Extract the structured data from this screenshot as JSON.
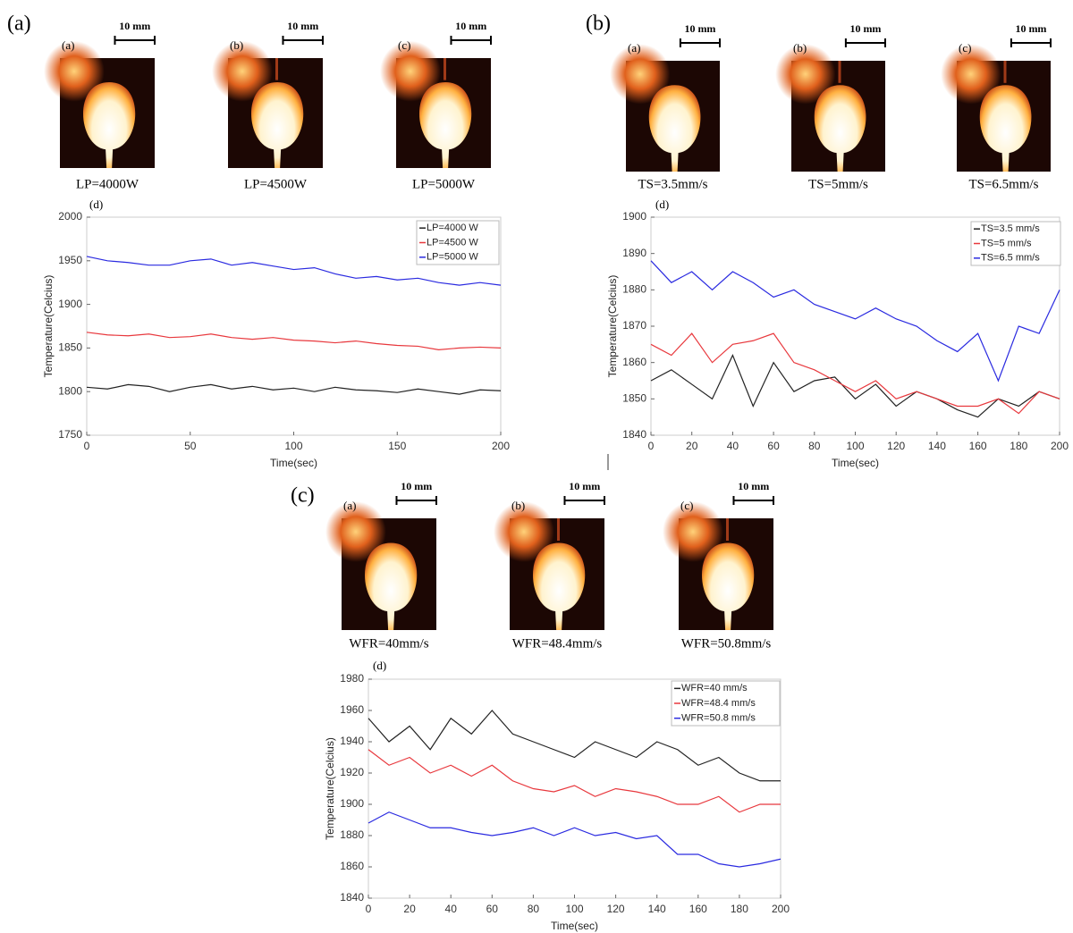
{
  "chart_data": [
    {
      "type": "line",
      "panel_label": "(a)",
      "subplot_label": "(d)",
      "images": [
        {
          "label": "(a)",
          "scale": "10 mm",
          "caption": "LP=4000W"
        },
        {
          "label": "(b)",
          "scale": "10 mm",
          "caption": "LP=4500W"
        },
        {
          "label": "(c)",
          "scale": "10 mm",
          "caption": "LP=5000W"
        }
      ],
      "x_label": "Time(sec)",
      "y_label": "Temperature(Celcius)",
      "x": [
        0,
        10,
        20,
        30,
        40,
        50,
        60,
        70,
        80,
        90,
        100,
        110,
        120,
        130,
        140,
        150,
        160,
        170,
        180,
        190,
        200
      ],
      "xlim": [
        0,
        200
      ],
      "xticks": [
        0,
        50,
        100,
        150,
        200
      ],
      "ylim": [
        1750,
        2000
      ],
      "yticks": [
        1750,
        1800,
        1850,
        1900,
        1950,
        2000
      ],
      "legend": "upper right",
      "series": [
        {
          "name": "LP=4000 W",
          "color": "#222222",
          "values": [
            1805,
            1803,
            1808,
            1806,
            1800,
            1805,
            1808,
            1803,
            1806,
            1802,
            1804,
            1800,
            1805,
            1802,
            1801,
            1799,
            1803,
            1800,
            1797,
            1802,
            1801
          ]
        },
        {
          "name": "LP=4500 W",
          "color": "#e8383d",
          "values": [
            1868,
            1865,
            1864,
            1866,
            1862,
            1863,
            1866,
            1862,
            1860,
            1862,
            1859,
            1858,
            1856,
            1858,
            1855,
            1853,
            1852,
            1848,
            1850,
            1851,
            1850
          ]
        },
        {
          "name": "LP=5000 W",
          "color": "#2a2ae0",
          "values": [
            1955,
            1950,
            1948,
            1945,
            1945,
            1950,
            1952,
            1945,
            1948,
            1944,
            1940,
            1942,
            1935,
            1930,
            1932,
            1928,
            1930,
            1925,
            1922,
            1925,
            1922
          ]
        }
      ]
    },
    {
      "type": "line",
      "panel_label": "(b)",
      "subplot_label": "(d)",
      "images": [
        {
          "label": "(a)",
          "scale": "10 mm",
          "caption": "TS=3.5mm/s"
        },
        {
          "label": "(b)",
          "scale": "10 mm",
          "caption": "TS=5mm/s"
        },
        {
          "label": "(c)",
          "scale": "10 mm",
          "caption": "TS=6.5mm/s"
        }
      ],
      "x_label": "Time(sec)",
      "y_label": "Temperature(Celcius)",
      "x": [
        0,
        10,
        20,
        30,
        40,
        50,
        60,
        70,
        80,
        90,
        100,
        110,
        120,
        130,
        140,
        150,
        160,
        170,
        180,
        190,
        200
      ],
      "xlim": [
        0,
        200
      ],
      "xticks": [
        0,
        20,
        40,
        60,
        80,
        100,
        120,
        140,
        160,
        180,
        200
      ],
      "ylim": [
        1840,
        1900
      ],
      "yticks": [
        1840,
        1850,
        1860,
        1870,
        1880,
        1890,
        1900
      ],
      "legend": "upper right",
      "series": [
        {
          "name": "TS=3.5 mm/s",
          "color": "#222222",
          "values": [
            1855,
            1858,
            1854,
            1850,
            1862,
            1848,
            1860,
            1852,
            1855,
            1856,
            1850,
            1854,
            1848,
            1852,
            1850,
            1847,
            1845,
            1850,
            1848,
            1852,
            1850
          ]
        },
        {
          "name": "TS=5 mm/s",
          "color": "#e8383d",
          "values": [
            1865,
            1862,
            1868,
            1860,
            1865,
            1866,
            1868,
            1860,
            1858,
            1855,
            1852,
            1855,
            1850,
            1852,
            1850,
            1848,
            1848,
            1850,
            1846,
            1852,
            1850
          ]
        },
        {
          "name": "TS=6.5 mm/s",
          "color": "#2a2ae0",
          "values": [
            1888,
            1882,
            1885,
            1880,
            1885,
            1882,
            1878,
            1880,
            1876,
            1874,
            1872,
            1875,
            1872,
            1870,
            1866,
            1863,
            1868,
            1855,
            1870,
            1868,
            1880
          ]
        }
      ]
    },
    {
      "type": "line",
      "panel_label": "(c)",
      "subplot_label": "(d)",
      "images": [
        {
          "label": "(a)",
          "scale": "10 mm",
          "caption": "WFR=40mm/s"
        },
        {
          "label": "(b)",
          "scale": "10 mm",
          "caption": "WFR=48.4mm/s"
        },
        {
          "label": "(c)",
          "scale": "10 mm",
          "caption": "WFR=50.8mm/s"
        }
      ],
      "x_label": "Time(sec)",
      "y_label": "Temperature(Celcius)",
      "x": [
        0,
        10,
        20,
        30,
        40,
        50,
        60,
        70,
        80,
        90,
        100,
        110,
        120,
        130,
        140,
        150,
        160,
        170,
        180,
        190,
        200
      ],
      "xlim": [
        0,
        200
      ],
      "xticks": [
        0,
        20,
        40,
        60,
        80,
        100,
        120,
        140,
        160,
        180,
        200
      ],
      "ylim": [
        1840,
        1980
      ],
      "yticks": [
        1840,
        1860,
        1880,
        1900,
        1920,
        1940,
        1960,
        1980
      ],
      "legend": "upper right",
      "series": [
        {
          "name": "WFR=40 mm/s",
          "color": "#222222",
          "values": [
            1955,
            1940,
            1950,
            1935,
            1955,
            1945,
            1960,
            1945,
            1940,
            1935,
            1930,
            1940,
            1935,
            1930,
            1940,
            1935,
            1925,
            1930,
            1920,
            1915,
            1915
          ]
        },
        {
          "name": "WFR=48.4 mm/s",
          "color": "#e8383d",
          "values": [
            1935,
            1925,
            1930,
            1920,
            1925,
            1918,
            1925,
            1915,
            1910,
            1908,
            1912,
            1905,
            1910,
            1908,
            1905,
            1900,
            1900,
            1905,
            1895,
            1900,
            1900
          ]
        },
        {
          "name": "WFR=50.8 mm/s",
          "color": "#2a2ae0",
          "values": [
            1888,
            1895,
            1890,
            1885,
            1885,
            1882,
            1880,
            1882,
            1885,
            1880,
            1885,
            1880,
            1882,
            1878,
            1880,
            1868,
            1868,
            1862,
            1860,
            1862,
            1865
          ]
        }
      ]
    }
  ]
}
